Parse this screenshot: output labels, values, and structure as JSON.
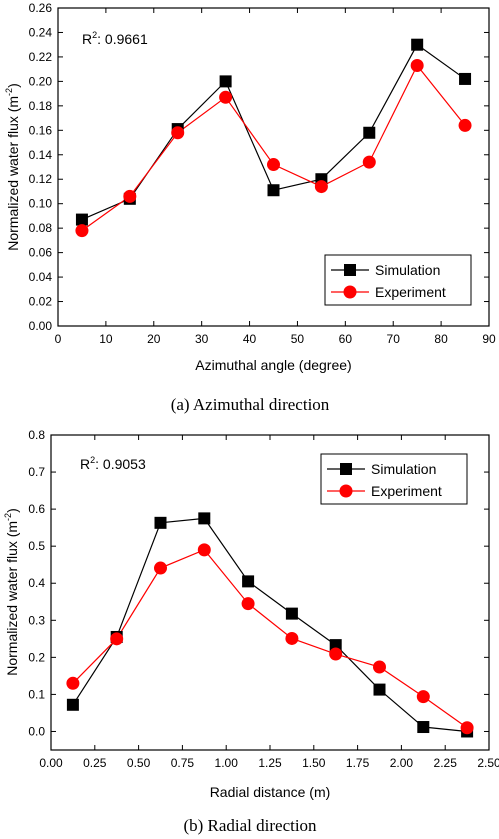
{
  "captions": {
    "a": "(a)  Azimuthal  direction",
    "b": "(b)  Radial  direction"
  },
  "chart_data": [
    {
      "type": "line",
      "r2_label": "R",
      "r2_sup": "2",
      "r2_value": ": 0.9661",
      "xlabel": "Azimuthal angle (degree)",
      "ylabel": "Normalized water flux (m",
      "ylabel_sup": "-2",
      "ylabel_end": ")",
      "xlim": [
        0,
        90
      ],
      "ylim": [
        0,
        0.26
      ],
      "xticks": [
        0,
        10,
        20,
        30,
        40,
        50,
        60,
        70,
        80,
        90
      ],
      "xtick_labels": [
        "0",
        "10",
        "20",
        "30",
        "40",
        "50",
        "60",
        "70",
        "80",
        "90"
      ],
      "yticks": [
        0,
        0.02,
        0.04,
        0.06,
        0.08,
        0.1,
        0.12,
        0.14,
        0.16,
        0.18,
        0.2,
        0.22,
        0.24,
        0.26
      ],
      "ytick_labels": [
        "0.00",
        "0.02",
        "0.04",
        "0.06",
        "0.08",
        "0.10",
        "0.12",
        "0.14",
        "0.16",
        "0.18",
        "0.20",
        "0.22",
        "0.24",
        "0.26"
      ],
      "x": [
        5,
        15,
        25,
        35,
        45,
        55,
        65,
        75,
        85
      ],
      "legend_position": "lower-right",
      "series": [
        {
          "name": "Simulation",
          "marker": "square",
          "color": "#000000",
          "values": [
            0.087,
            0.104,
            0.161,
            0.2,
            0.111,
            0.12,
            0.158,
            0.23,
            0.202
          ]
        },
        {
          "name": "Experiment",
          "marker": "circle",
          "color": "#ff0000",
          "values": [
            0.078,
            0.106,
            0.158,
            0.187,
            0.132,
            0.114,
            0.134,
            0.213,
            0.164
          ]
        }
      ]
    },
    {
      "type": "line",
      "r2_label": "R",
      "r2_sup": "2",
      "r2_value": ": 0.9053",
      "xlabel": "Radial distance (m)",
      "ylabel": "Normalized water flux (m",
      "ylabel_sup": "-2",
      "ylabel_end": ")",
      "xlim": [
        0,
        2.5
      ],
      "ylim": [
        -0.05,
        0.8
      ],
      "xticks": [
        0,
        0.25,
        0.5,
        0.75,
        1.0,
        1.25,
        1.5,
        1.75,
        2.0,
        2.25,
        2.5
      ],
      "xtick_labels": [
        "0.00",
        "0.25",
        "0.50",
        "0.75",
        "1.00",
        "1.25",
        "1.50",
        "1.75",
        "2.00",
        "2.25",
        "2.50"
      ],
      "yticks": [
        0,
        0.1,
        0.2,
        0.3,
        0.4,
        0.5,
        0.6,
        0.7,
        0.8
      ],
      "ytick_labels": [
        "0.0",
        "0.1",
        "0.2",
        "0.3",
        "0.4",
        "0.5",
        "0.6",
        "0.7",
        "0.8"
      ],
      "x": [
        0.125,
        0.375,
        0.625,
        0.875,
        1.125,
        1.375,
        1.625,
        1.875,
        2.125,
        2.375
      ],
      "legend_position": "top-right",
      "series": [
        {
          "name": "Simulation",
          "marker": "square",
          "color": "#000000",
          "values": [
            0.072,
            0.255,
            0.563,
            0.575,
            0.405,
            0.318,
            0.233,
            0.113,
            0.012,
            0.0
          ]
        },
        {
          "name": "Experiment",
          "marker": "circle",
          "color": "#ff0000",
          "values": [
            0.13,
            0.25,
            0.441,
            0.49,
            0.345,
            0.251,
            0.209,
            0.174,
            0.094,
            0.01
          ]
        }
      ]
    }
  ]
}
